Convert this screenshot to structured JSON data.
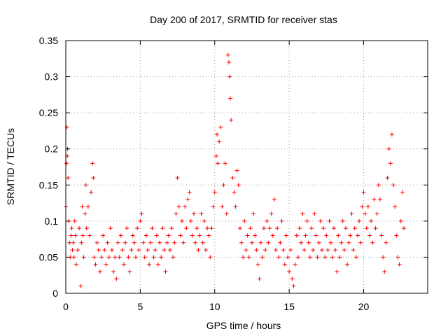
{
  "chart_data": {
    "type": "scatter",
    "title": "Day 200 of 2017, SRMTID for receiver stas",
    "xlabel": "GPS time / hours",
    "ylabel": "SRMTID / TECUs",
    "xlim": [
      0,
      24.3
    ],
    "ylim": [
      0,
      0.35
    ],
    "xticks": [
      0,
      5,
      10,
      15,
      20
    ],
    "xtick_labels": [
      "0",
      "5",
      "10",
      "15",
      "20"
    ],
    "yticks": [
      0,
      0.05,
      0.1,
      0.15,
      0.2,
      0.25,
      0.3,
      0.35
    ],
    "ytick_labels": [
      "0",
      "0.05",
      "0.1",
      "0.15",
      "0.2",
      "0.25",
      "0.3",
      "0.35"
    ],
    "grid": true,
    "marker": "+",
    "color": "#ff0000",
    "series": [
      {
        "name": "SRMTID",
        "points": [
          [
            0.0,
            0.12
          ],
          [
            0.05,
            0.18
          ],
          [
            0.08,
            0.23
          ],
          [
            0.1,
            0.19
          ],
          [
            0.12,
            0.2
          ],
          [
            0.15,
            0.16
          ],
          [
            0.2,
            0.1
          ],
          [
            0.25,
            0.07
          ],
          [
            0.3,
            0.05
          ],
          [
            0.35,
            0.08
          ],
          [
            0.4,
            0.09
          ],
          [
            0.45,
            0.06
          ],
          [
            0.5,
            0.07
          ],
          [
            0.55,
            0.05
          ],
          [
            0.6,
            0.1
          ],
          [
            0.65,
            0.08
          ],
          [
            0.7,
            0.04
          ],
          [
            0.8,
            0.06
          ],
          [
            0.9,
            0.09
          ],
          [
            1.0,
            0.01
          ],
          [
            1.05,
            0.07
          ],
          [
            1.1,
            0.12
          ],
          [
            1.15,
            0.08
          ],
          [
            1.2,
            0.05
          ],
          [
            1.3,
            0.11
          ],
          [
            1.35,
            0.15
          ],
          [
            1.4,
            0.09
          ],
          [
            1.5,
            0.12
          ],
          [
            1.6,
            0.08
          ],
          [
            1.7,
            0.14
          ],
          [
            1.8,
            0.18
          ],
          [
            1.85,
            0.16
          ],
          [
            1.9,
            0.05
          ],
          [
            2.0,
            0.04
          ],
          [
            2.1,
            0.07
          ],
          [
            2.2,
            0.06
          ],
          [
            2.3,
            0.03
          ],
          [
            2.4,
            0.05
          ],
          [
            2.5,
            0.08
          ],
          [
            2.6,
            0.06
          ],
          [
            2.7,
            0.04
          ],
          [
            2.8,
            0.07
          ],
          [
            2.9,
            0.05
          ],
          [
            3.0,
            0.09
          ],
          [
            3.1,
            0.06
          ],
          [
            3.2,
            0.03
          ],
          [
            3.3,
            0.05
          ],
          [
            3.4,
            0.02
          ],
          [
            3.5,
            0.07
          ],
          [
            3.6,
            0.05
          ],
          [
            3.7,
            0.08
          ],
          [
            3.8,
            0.06
          ],
          [
            3.9,
            0.04
          ],
          [
            4.0,
            0.07
          ],
          [
            4.1,
            0.09
          ],
          [
            4.2,
            0.05
          ],
          [
            4.3,
            0.03
          ],
          [
            4.4,
            0.06
          ],
          [
            4.5,
            0.08
          ],
          [
            4.6,
            0.07
          ],
          [
            4.7,
            0.05
          ],
          [
            4.8,
            0.09
          ],
          [
            4.9,
            0.06
          ],
          [
            5.0,
            0.1
          ],
          [
            5.1,
            0.11
          ],
          [
            5.2,
            0.07
          ],
          [
            5.3,
            0.05
          ],
          [
            5.4,
            0.08
          ],
          [
            5.5,
            0.06
          ],
          [
            5.6,
            0.04
          ],
          [
            5.7,
            0.07
          ],
          [
            5.8,
            0.09
          ],
          [
            5.9,
            0.05
          ],
          [
            6.0,
            0.06
          ],
          [
            6.1,
            0.08
          ],
          [
            6.2,
            0.04
          ],
          [
            6.3,
            0.07
          ],
          [
            6.4,
            0.05
          ],
          [
            6.5,
            0.09
          ],
          [
            6.6,
            0.06
          ],
          [
            6.7,
            0.03
          ],
          [
            6.8,
            0.07
          ],
          [
            6.9,
            0.08
          ],
          [
            7.0,
            0.06
          ],
          [
            7.1,
            0.09
          ],
          [
            7.2,
            0.05
          ],
          [
            7.3,
            0.07
          ],
          [
            7.4,
            0.11
          ],
          [
            7.5,
            0.16
          ],
          [
            7.6,
            0.12
          ],
          [
            7.7,
            0.08
          ],
          [
            7.8,
            0.1
          ],
          [
            7.9,
            0.07
          ],
          [
            8.0,
            0.12
          ],
          [
            8.1,
            0.09
          ],
          [
            8.2,
            0.13
          ],
          [
            8.3,
            0.14
          ],
          [
            8.4,
            0.1
          ],
          [
            8.5,
            0.08
          ],
          [
            8.6,
            0.11
          ],
          [
            8.7,
            0.07
          ],
          [
            8.8,
            0.09
          ],
          [
            8.9,
            0.06
          ],
          [
            9.0,
            0.08
          ],
          [
            9.1,
            0.11
          ],
          [
            9.2,
            0.07
          ],
          [
            9.3,
            0.1
          ],
          [
            9.4,
            0.06
          ],
          [
            9.5,
            0.09
          ],
          [
            9.6,
            0.08
          ],
          [
            9.7,
            0.05
          ],
          [
            9.8,
            0.09
          ],
          [
            9.9,
            0.12
          ],
          [
            10.0,
            0.14
          ],
          [
            10.1,
            0.19
          ],
          [
            10.15,
            0.22
          ],
          [
            10.2,
            0.18
          ],
          [
            10.3,
            0.21
          ],
          [
            10.4,
            0.23
          ],
          [
            10.5,
            0.12
          ],
          [
            10.6,
            0.15
          ],
          [
            10.7,
            0.18
          ],
          [
            10.8,
            0.11
          ],
          [
            10.9,
            0.33
          ],
          [
            10.95,
            0.32
          ],
          [
            11.0,
            0.3
          ],
          [
            11.05,
            0.27
          ],
          [
            11.1,
            0.24
          ],
          [
            11.2,
            0.16
          ],
          [
            11.3,
            0.14
          ],
          [
            11.4,
            0.12
          ],
          [
            11.5,
            0.17
          ],
          [
            11.6,
            0.15
          ],
          [
            11.7,
            0.09
          ],
          [
            11.8,
            0.07
          ],
          [
            11.9,
            0.05
          ],
          [
            12.0,
            0.1
          ],
          [
            12.1,
            0.06
          ],
          [
            12.2,
            0.08
          ],
          [
            12.3,
            0.05
          ],
          [
            12.4,
            0.09
          ],
          [
            12.5,
            0.07
          ],
          [
            12.6,
            0.11
          ],
          [
            12.7,
            0.08
          ],
          [
            12.8,
            0.06
          ],
          [
            12.9,
            0.04
          ],
          [
            13.0,
            0.02
          ],
          [
            13.1,
            0.07
          ],
          [
            13.2,
            0.05
          ],
          [
            13.3,
            0.09
          ],
          [
            13.4,
            0.06
          ],
          [
            13.5,
            0.1
          ],
          [
            13.6,
            0.07
          ],
          [
            13.7,
            0.09
          ],
          [
            13.8,
            0.11
          ],
          [
            13.9,
            0.08
          ],
          [
            14.0,
            0.13
          ],
          [
            14.1,
            0.06
          ],
          [
            14.2,
            0.09
          ],
          [
            14.3,
            0.05
          ],
          [
            14.4,
            0.07
          ],
          [
            14.5,
            0.1
          ],
          [
            14.6,
            0.06
          ],
          [
            14.7,
            0.04
          ],
          [
            14.8,
            0.08
          ],
          [
            14.9,
            0.05
          ],
          [
            15.0,
            0.03
          ],
          [
            15.1,
            0.06
          ],
          [
            15.2,
            0.02
          ],
          [
            15.3,
            0.01
          ],
          [
            15.4,
            0.04
          ],
          [
            15.5,
            0.08
          ],
          [
            15.6,
            0.05
          ],
          [
            15.7,
            0.09
          ],
          [
            15.8,
            0.07
          ],
          [
            15.9,
            0.11
          ],
          [
            16.0,
            0.06
          ],
          [
            16.1,
            0.08
          ],
          [
            16.2,
            0.1
          ],
          [
            16.3,
            0.07
          ],
          [
            16.4,
            0.05
          ],
          [
            16.5,
            0.09
          ],
          [
            16.6,
            0.06
          ],
          [
            16.7,
            0.11
          ],
          [
            16.8,
            0.08
          ],
          [
            16.9,
            0.05
          ],
          [
            17.0,
            0.07
          ],
          [
            17.1,
            0.1
          ],
          [
            17.2,
            0.06
          ],
          [
            17.3,
            0.09
          ],
          [
            17.4,
            0.05
          ],
          [
            17.5,
            0.08
          ],
          [
            17.6,
            0.06
          ],
          [
            17.7,
            0.1
          ],
          [
            17.8,
            0.07
          ],
          [
            17.9,
            0.05
          ],
          [
            18.0,
            0.09
          ],
          [
            18.1,
            0.06
          ],
          [
            18.2,
            0.03
          ],
          [
            18.3,
            0.08
          ],
          [
            18.4,
            0.05
          ],
          [
            18.5,
            0.07
          ],
          [
            18.6,
            0.1
          ],
          [
            18.7,
            0.06
          ],
          [
            18.8,
            0.09
          ],
          [
            18.9,
            0.04
          ],
          [
            19.0,
            0.07
          ],
          [
            19.1,
            0.08
          ],
          [
            19.2,
            0.11
          ],
          [
            19.3,
            0.06
          ],
          [
            19.4,
            0.09
          ],
          [
            19.5,
            0.05
          ],
          [
            19.6,
            0.08
          ],
          [
            19.7,
            0.1
          ],
          [
            19.8,
            0.07
          ],
          [
            19.9,
            0.12
          ],
          [
            20.0,
            0.14
          ],
          [
            20.1,
            0.11
          ],
          [
            20.2,
            0.09
          ],
          [
            20.3,
            0.12
          ],
          [
            20.4,
            0.08
          ],
          [
            20.5,
            0.1
          ],
          [
            20.6,
            0.07
          ],
          [
            20.7,
            0.13
          ],
          [
            20.8,
            0.09
          ],
          [
            20.9,
            0.11
          ],
          [
            21.0,
            0.15
          ],
          [
            21.1,
            0.13
          ],
          [
            21.2,
            0.08
          ],
          [
            21.3,
            0.05
          ],
          [
            21.4,
            0.03
          ],
          [
            21.5,
            0.07
          ],
          [
            21.6,
            0.16
          ],
          [
            21.7,
            0.2
          ],
          [
            21.8,
            0.18
          ],
          [
            21.9,
            0.22
          ],
          [
            22.0,
            0.15
          ],
          [
            22.1,
            0.12
          ],
          [
            22.2,
            0.08
          ],
          [
            22.3,
            0.05
          ],
          [
            22.4,
            0.04
          ],
          [
            22.5,
            0.1
          ],
          [
            22.6,
            0.14
          ],
          [
            22.7,
            0.09
          ]
        ]
      }
    ]
  }
}
